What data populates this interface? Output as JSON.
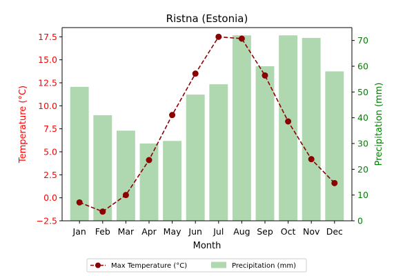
{
  "chart_data": {
    "type": "bar+line",
    "title": "Ristna (Estonia)",
    "xlabel": "Month",
    "categories": [
      "Jan",
      "Feb",
      "Mar",
      "Apr",
      "May",
      "Jun",
      "Jul",
      "Aug",
      "Sep",
      "Oct",
      "Nov",
      "Dec"
    ],
    "left_axis": {
      "label": "Temperature (°C)",
      "ylim": [
        -2.5,
        18.5
      ],
      "ticks": [
        -2.5,
        0.0,
        2.5,
        5.0,
        7.5,
        10.0,
        12.5,
        15.0,
        17.5
      ],
      "tick_labels": [
        "−2.5",
        "0.0",
        "2.5",
        "5.0",
        "7.5",
        "10.0",
        "12.5",
        "15.0",
        "17.5"
      ],
      "color": "#ff0000"
    },
    "right_axis": {
      "label": "Precipitation (mm)",
      "ylim": [
        0,
        75
      ],
      "ticks": [
        0,
        10,
        20,
        30,
        40,
        50,
        60,
        70
      ],
      "tick_labels": [
        "0",
        "10",
        "20",
        "30",
        "40",
        "50",
        "60",
        "70"
      ],
      "color": "#008000"
    },
    "series": [
      {
        "name": "Max Temperature (°C)",
        "kind": "line",
        "axis": "left",
        "color": "#8b0000",
        "values": [
          -0.5,
          -1.5,
          0.3,
          4.1,
          9.0,
          13.5,
          17.5,
          17.3,
          13.3,
          8.3,
          4.2,
          1.6
        ]
      },
      {
        "name": "Precipitation (mm)",
        "kind": "bar",
        "axis": "right",
        "color": "#b0d8b0",
        "values": [
          52,
          41,
          35,
          30,
          31,
          49,
          53,
          72,
          60,
          72,
          71,
          58
        ]
      }
    ],
    "grid": false,
    "legend": "bottom-center"
  }
}
